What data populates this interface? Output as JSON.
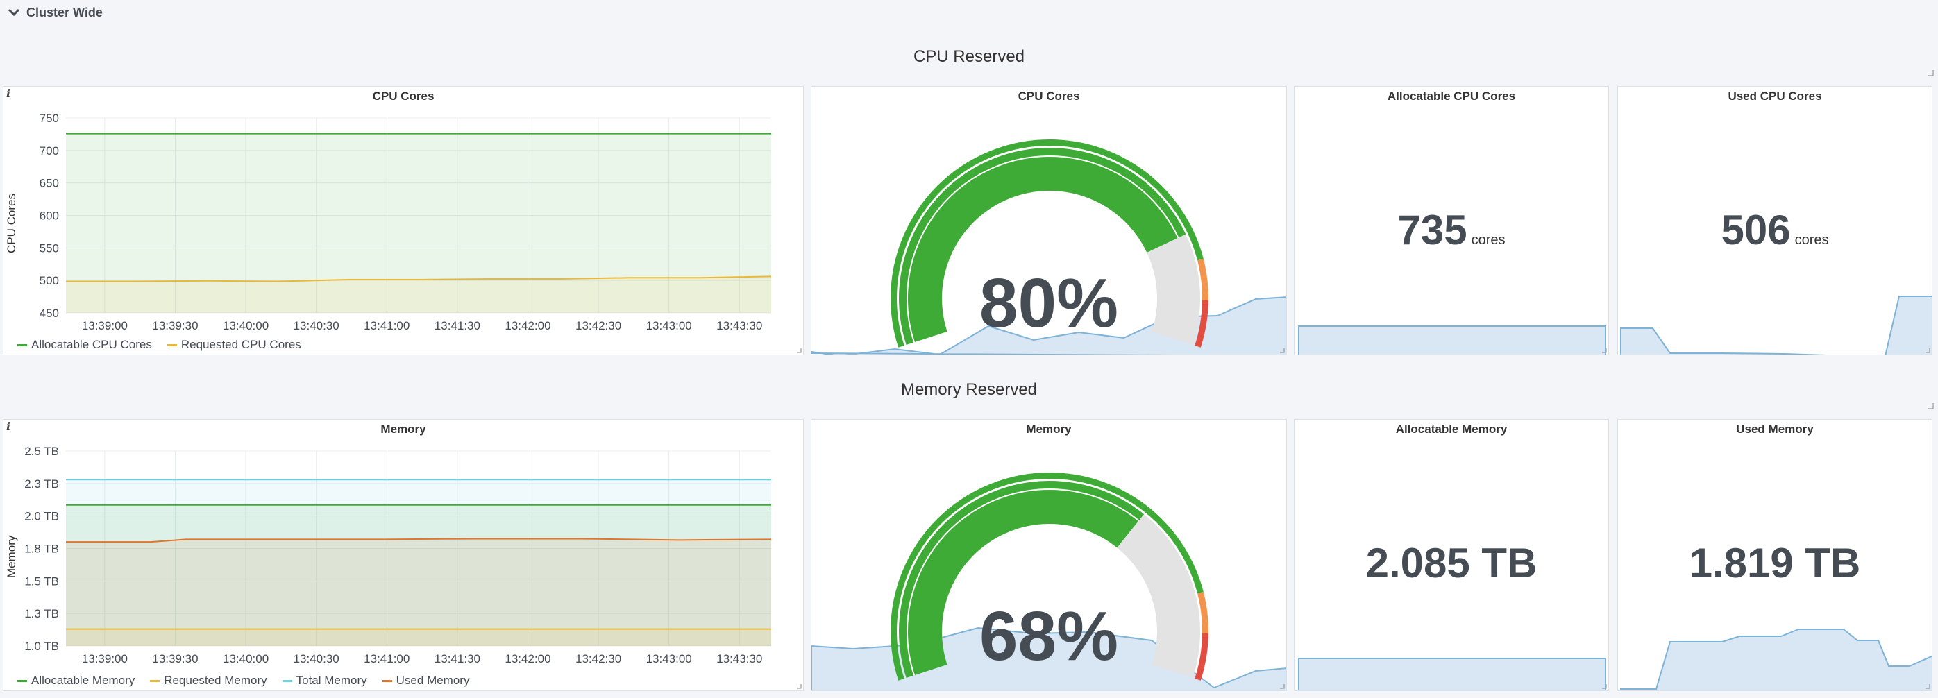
{
  "row": {
    "title": "Cluster Wide"
  },
  "cpu": {
    "section_title": "CPU Reserved",
    "graph": {
      "title": "CPU Cores",
      "ylabel": "CPU Cores",
      "legend": [
        "Allocatable CPU Cores",
        "Requested CPU Cores"
      ]
    },
    "gauge": {
      "title": "CPU Cores",
      "value": "80%",
      "percent": 80
    },
    "allocatable": {
      "title": "Allocatable CPU Cores",
      "value": "735",
      "unit": "cores"
    },
    "used": {
      "title": "Used CPU Cores",
      "value": "506",
      "unit": "cores"
    }
  },
  "memory": {
    "section_title": "Memory Reserved",
    "graph": {
      "title": "Memory",
      "ylabel": "Memory",
      "legend": [
        "Allocatable Memory",
        "Requested Memory",
        "Total Memory",
        "Used Memory"
      ]
    },
    "gauge": {
      "title": "Memory",
      "value": "68%",
      "percent": 68
    },
    "allocatable": {
      "title": "Allocatable Memory",
      "value": "2.085 TB"
    },
    "used": {
      "title": "Used Memory",
      "value": "1.819 TB"
    }
  },
  "colors": {
    "green": "#3eab36",
    "yellow": "#eab839",
    "cyan": "#6ed0e0",
    "orange": "#e0752d",
    "red": "#e24d42",
    "gauge_orange": "#f2944b",
    "gauge_grey": "#e3e3e3",
    "spark": "#7eb3d8"
  },
  "chart_data": [
    {
      "type": "line",
      "title": "CPU Cores",
      "ylabel": "CPU Cores",
      "xlabel": "",
      "x": [
        "13:39:00",
        "13:39:30",
        "13:40:00",
        "13:40:30",
        "13:41:00",
        "13:41:30",
        "13:42:00",
        "13:42:30",
        "13:43:00",
        "13:43:30"
      ],
      "yticks": [
        "750",
        "700",
        "650",
        "600",
        "550",
        "500",
        "450"
      ],
      "ylim": [
        450,
        760
      ],
      "xlim": [
        0,
        10
      ],
      "series": [
        {
          "name": "Allocatable CPU Cores",
          "color": "#3eab36",
          "points": [
            [
              0,
              735
            ],
            [
              10,
              735
            ]
          ]
        },
        {
          "name": "Requested CPU Cores",
          "color": "#eab839",
          "points": [
            [
              0,
              500
            ],
            [
              1,
              500
            ],
            [
              2,
              501
            ],
            [
              3,
              500
            ],
            [
              4,
              503
            ],
            [
              5,
              503
            ],
            [
              6,
              504
            ],
            [
              7,
              504
            ],
            [
              8,
              506
            ],
            [
              9,
              506
            ],
            [
              10,
              508
            ]
          ]
        }
      ]
    },
    {
      "type": "line",
      "title": "Memory",
      "ylabel": "Memory",
      "xlabel": "",
      "x": [
        "13:39:00",
        "13:39:30",
        "13:40:00",
        "13:40:30",
        "13:41:00",
        "13:41:30",
        "13:42:00",
        "13:42:30",
        "13:43:00",
        "13:43:30"
      ],
      "yticks": [
        "2.5 TB",
        "2.3 TB",
        "2.0 TB",
        "1.8 TB",
        "1.5 TB",
        "1.3 TB",
        "1.0 TB"
      ],
      "ylim": [
        1.0,
        2.5
      ],
      "xlim": [
        0,
        10
      ],
      "series": [
        {
          "name": "Allocatable Memory",
          "color": "#3eab36",
          "points": [
            [
              0,
              2.085
            ],
            [
              10,
              2.085
            ]
          ]
        },
        {
          "name": "Requested Memory",
          "color": "#eab839",
          "points": [
            [
              0,
              1.13
            ],
            [
              10,
              1.13
            ]
          ]
        },
        {
          "name": "Total Memory",
          "color": "#6ed0e0",
          "points": [
            [
              0,
              2.28
            ],
            [
              10,
              2.28
            ]
          ]
        },
        {
          "name": "Used Memory",
          "color": "#e0752d",
          "points": [
            [
              0,
              1.8
            ],
            [
              1.2,
              1.8
            ],
            [
              1.7,
              1.82
            ],
            [
              4.5,
              1.82
            ],
            [
              5.8,
              1.825
            ],
            [
              7.3,
              1.825
            ],
            [
              8.7,
              1.815
            ],
            [
              10,
              1.82
            ]
          ]
        }
      ]
    }
  ]
}
